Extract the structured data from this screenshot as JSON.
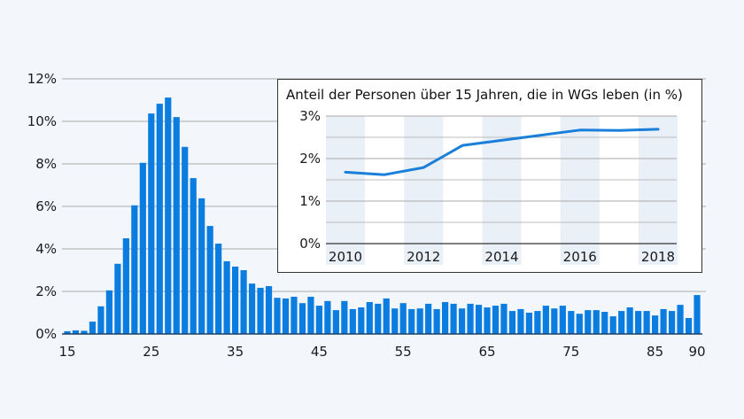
{
  "chart_data": [
    {
      "type": "bar",
      "title": "",
      "xlabel": "",
      "ylabel": "",
      "ylim": [
        0,
        12
      ],
      "yticks": [
        0,
        2,
        4,
        6,
        8,
        10,
        12
      ],
      "ytick_labels": [
        "0%",
        "2%",
        "4%",
        "6%",
        "8%",
        "10%",
        "12%"
      ],
      "xticks": [
        15,
        25,
        35,
        45,
        55,
        65,
        75,
        85,
        90
      ],
      "xtick_labels": [
        "15",
        "25",
        "35",
        "45",
        "55",
        "65",
        "75",
        "85",
        "90"
      ],
      "grid": true,
      "color": "#0b7de0",
      "x": [
        15,
        16,
        17,
        18,
        19,
        20,
        21,
        22,
        23,
        24,
        25,
        26,
        27,
        28,
        29,
        30,
        31,
        32,
        33,
        34,
        35,
        36,
        37,
        38,
        39,
        40,
        41,
        42,
        43,
        44,
        45,
        46,
        47,
        48,
        49,
        50,
        51,
        52,
        53,
        54,
        55,
        56,
        57,
        58,
        59,
        60,
        61,
        62,
        63,
        64,
        65,
        66,
        67,
        68,
        69,
        70,
        71,
        72,
        73,
        74,
        75,
        76,
        77,
        78,
        79,
        80,
        81,
        82,
        83,
        84,
        85,
        86,
        87,
        88,
        89,
        90
      ],
      "values": [
        0.13,
        0.17,
        0.15,
        0.58,
        1.3,
        2.05,
        3.3,
        4.5,
        6.05,
        8.05,
        10.37,
        10.83,
        11.12,
        10.2,
        8.8,
        7.33,
        6.38,
        5.08,
        4.25,
        3.42,
        3.17,
        3.0,
        2.37,
        2.17,
        2.25,
        1.7,
        1.67,
        1.75,
        1.45,
        1.75,
        1.33,
        1.55,
        1.12,
        1.55,
        1.17,
        1.25,
        1.5,
        1.42,
        1.67,
        1.2,
        1.45,
        1.17,
        1.2,
        1.42,
        1.17,
        1.5,
        1.42,
        1.2,
        1.42,
        1.37,
        1.25,
        1.33,
        1.42,
        1.08,
        1.17,
        1.0,
        1.08,
        1.33,
        1.2,
        1.33,
        1.08,
        0.95,
        1.12,
        1.12,
        1.04,
        0.83,
        1.08,
        1.25,
        1.08,
        1.08,
        0.87,
        1.17,
        1.08,
        1.37,
        0.75,
        1.83
      ]
    },
    {
      "type": "line",
      "title": "Anteil der Personen über 15 Jahren, die in WGs leben (in %)",
      "xlabel": "",
      "ylabel": "",
      "ylim": [
        0,
        3
      ],
      "yticks": [
        0,
        1,
        2,
        3
      ],
      "ytick_labels": [
        "0%",
        "1%",
        "2%",
        "3%"
      ],
      "minor_grid": [
        0.5,
        1.5,
        2.5
      ],
      "xticks": [
        2010,
        2012,
        2014,
        2016,
        2018
      ],
      "xtick_labels": [
        "2010",
        "2012",
        "2014",
        "2016",
        "2018"
      ],
      "grid": true,
      "color": "#1a7fd9",
      "x": [
        2010,
        2011,
        2012,
        2013,
        2014,
        2015,
        2016,
        2017,
        2018
      ],
      "values": [
        1.68,
        1.62,
        1.79,
        2.31,
        2.43,
        2.55,
        2.67,
        2.66,
        2.69
      ]
    }
  ],
  "colors": {
    "background": "#f3f7fc",
    "bar": "#0b7de0",
    "grid": "#a9a9a9",
    "baseline": "#1f3f66",
    "inset_band": "#eaf0f7",
    "inset_border": "#333333"
  }
}
